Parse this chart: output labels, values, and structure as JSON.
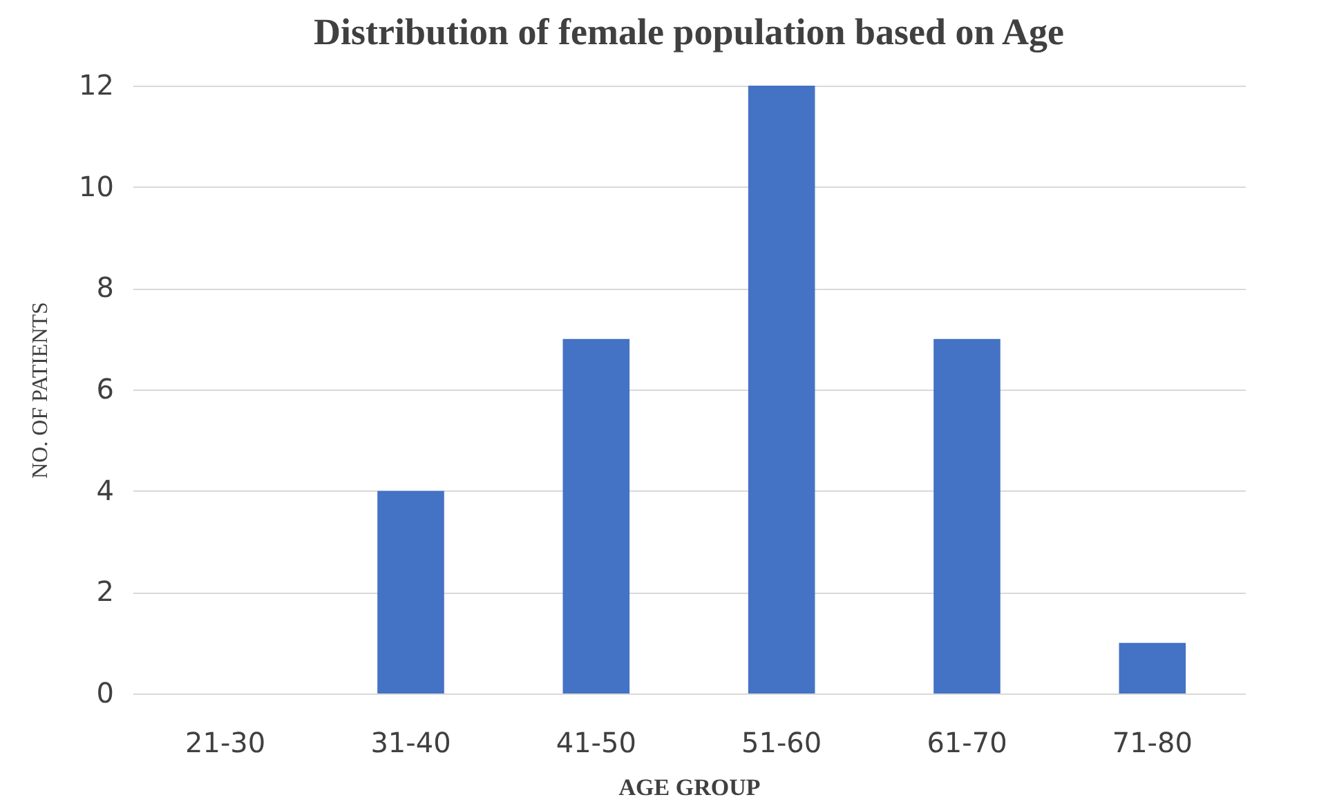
{
  "chart_data": {
    "type": "bar",
    "title": "Distribution  of female population  based on Age",
    "xlabel": "AGE GROUP",
    "ylabel": "NO. OF PATIENTS",
    "categories": [
      "21-30",
      "31-40",
      "41-50",
      "51-60",
      "61-70",
      "71-80"
    ],
    "values": [
      0,
      4,
      7,
      12,
      7,
      1
    ],
    "color": "#4472c4",
    "ylim": [
      0,
      12
    ],
    "yticks": [
      0,
      2,
      4,
      6,
      8,
      10,
      12
    ],
    "grid": "y"
  }
}
